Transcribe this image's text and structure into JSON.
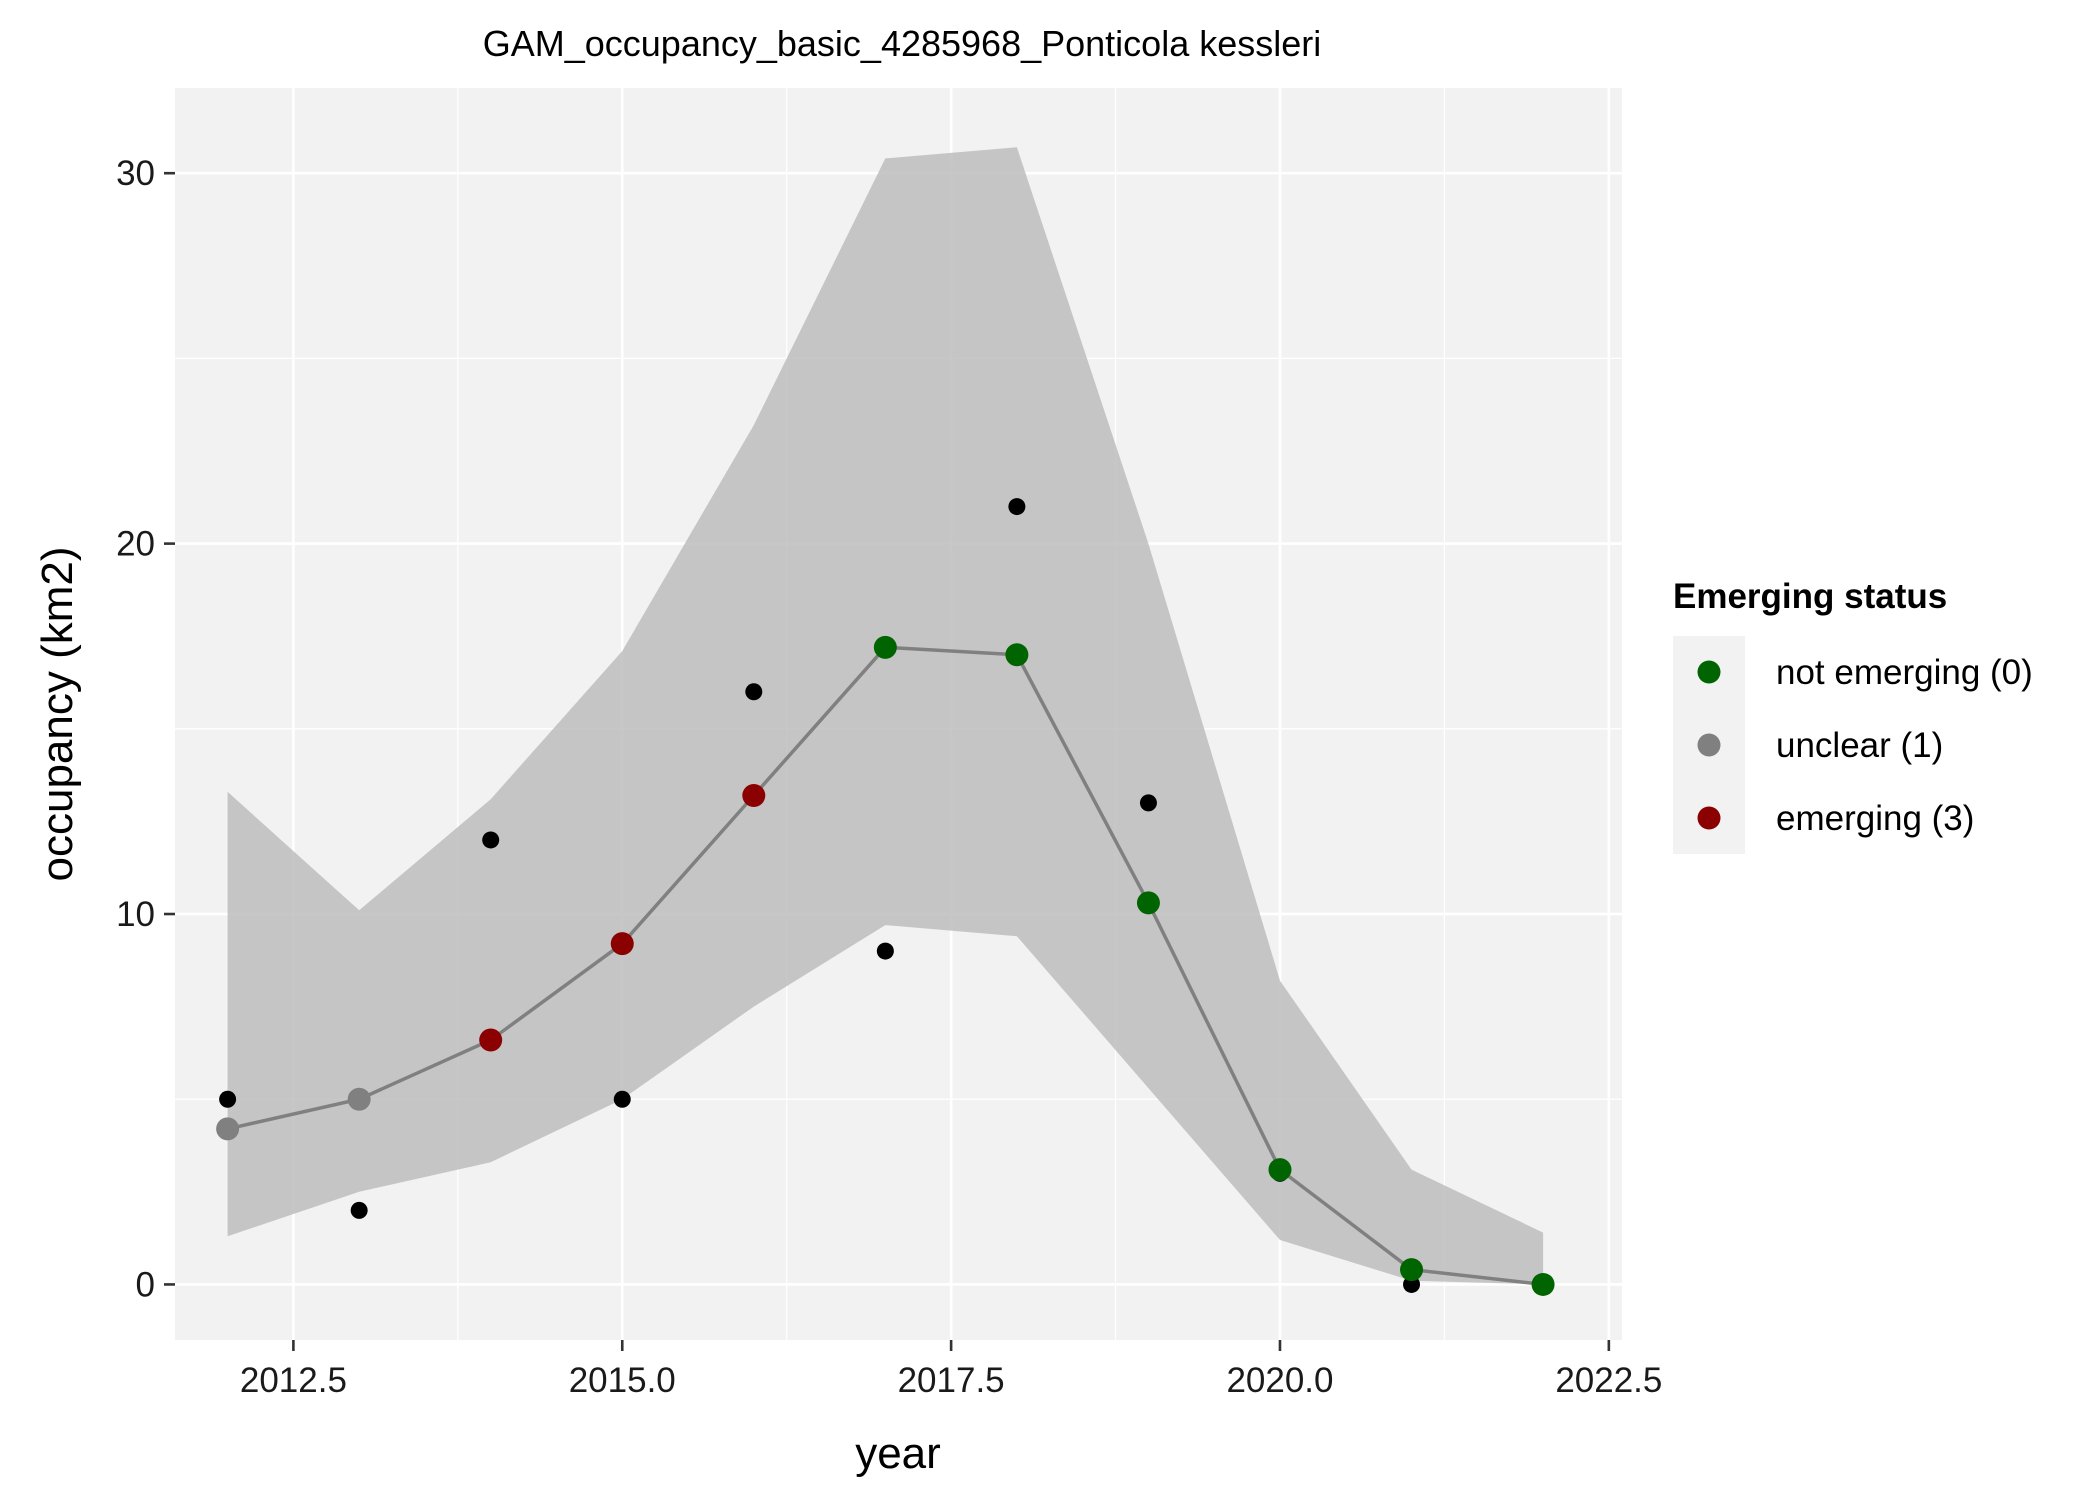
{
  "chart_data": {
    "type": "line",
    "title": "GAM_occupancy_basic_4285968_Ponticola kessleri",
    "xlabel": "year",
    "ylabel": "occupancy (km2)",
    "xlim": [
      2011.6,
      2022.6
    ],
    "ylim": [
      -1.5,
      32.3
    ],
    "x_ticks": [
      2012.5,
      2015.0,
      2017.5,
      2020.0,
      2022.5
    ],
    "x_tick_labels": [
      "2012.5",
      "2015.0",
      "2017.5",
      "2020.0",
      "2022.5"
    ],
    "y_ticks": [
      0,
      10,
      20,
      30
    ],
    "y_tick_labels": [
      "0",
      "10",
      "20",
      "30"
    ],
    "grid": true,
    "legend_position": "right",
    "legend": {
      "title": "Emerging status",
      "entries": [
        {
          "label": "not emerging (0)",
          "color": "#006400"
        },
        {
          "label": "unclear (1)",
          "color": "#808080"
        },
        {
          "label": "emerging (3)",
          "color": "#8b0000"
        }
      ]
    },
    "observed": {
      "color": "#000000",
      "x": [
        2012,
        2013,
        2014,
        2015,
        2016,
        2017,
        2018,
        2019,
        2020,
        2021,
        2022
      ],
      "y": [
        5,
        2,
        12,
        5,
        16,
        9,
        21,
        13,
        3,
        0,
        0
      ]
    },
    "fitted": {
      "line_color": "#808080",
      "x": [
        2012,
        2013,
        2014,
        2015,
        2016,
        2017,
        2018,
        2019,
        2020,
        2021,
        2022
      ],
      "y": [
        4.2,
        5.0,
        6.6,
        9.2,
        13.2,
        17.2,
        17.0,
        10.3,
        3.1,
        0.4,
        0.0
      ],
      "status": [
        1,
        1,
        3,
        3,
        3,
        0,
        0,
        0,
        0,
        0,
        0
      ],
      "lower": [
        1.3,
        2.5,
        3.3,
        5.0,
        7.5,
        9.7,
        9.4,
        5.3,
        1.2,
        0.1,
        0.0
      ],
      "upper": [
        13.3,
        10.1,
        13.1,
        17.1,
        23.2,
        30.4,
        30.7,
        20.0,
        8.2,
        3.1,
        1.4
      ]
    },
    "status_colors": {
      "0": "#006400",
      "1": "#808080",
      "3": "#8b0000"
    }
  }
}
